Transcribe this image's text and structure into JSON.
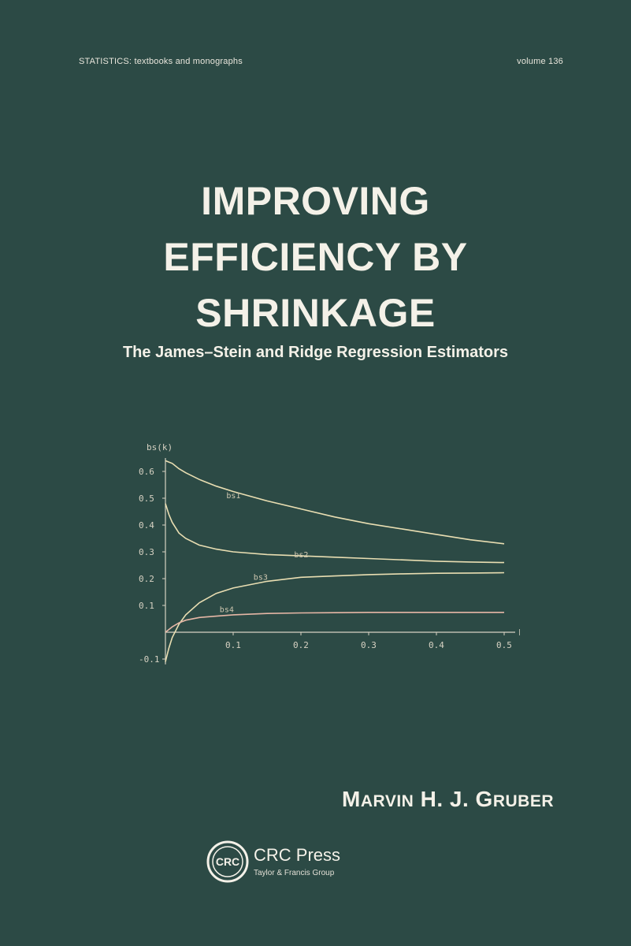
{
  "header": {
    "series": "STATISTICS:  textbooks and monographs",
    "volume": "volume 136"
  },
  "title": {
    "lines": [
      "IMPROVING",
      "EFFICIENCY BY",
      "SHRINKAGE"
    ]
  },
  "subtitle": "The James–Stein and Ridge Regression Estimators",
  "plot": {
    "y_axis_label": "bs(k)",
    "x_axis_label": "k",
    "curve_labels": [
      "bs1",
      "bs2",
      "bs3",
      "bs4"
    ],
    "colors": {
      "curve": "#e9deb2",
      "curve_pink": "#e6b7a6",
      "axis": "#d7d2c3"
    }
  },
  "chart_data": {
    "type": "line",
    "title": "",
    "xlabel": "k",
    "ylabel": "bs(k)",
    "xlim": [
      0,
      0.5
    ],
    "ylim": [
      -0.1,
      0.65
    ],
    "x_ticks": [
      "0.1",
      "0.2",
      "0.3",
      "0.4",
      "0.5"
    ],
    "y_ticks": [
      "0.6",
      "0.5",
      "0.4",
      "0.3",
      "0.2",
      "0.1",
      "-0.1"
    ],
    "x": [
      0,
      0.005,
      0.01,
      0.02,
      0.03,
      0.05,
      0.075,
      0.1,
      0.15,
      0.2,
      0.25,
      0.3,
      0.35,
      0.4,
      0.45,
      0.5
    ],
    "series": [
      {
        "name": "bs1",
        "values": [
          0.64,
          0.635,
          0.63,
          0.61,
          0.595,
          0.57,
          0.545,
          0.525,
          0.49,
          0.46,
          0.43,
          0.405,
          0.385,
          0.365,
          0.345,
          0.33
        ]
      },
      {
        "name": "bs2",
        "values": [
          0.48,
          0.44,
          0.41,
          0.37,
          0.35,
          0.325,
          0.31,
          0.3,
          0.29,
          0.285,
          0.28,
          0.275,
          0.27,
          0.265,
          0.262,
          0.26
        ]
      },
      {
        "name": "bs3",
        "values": [
          -0.11,
          -0.06,
          -0.02,
          0.03,
          0.065,
          0.11,
          0.145,
          0.165,
          0.19,
          0.205,
          0.21,
          0.215,
          0.218,
          0.22,
          0.221,
          0.222
        ]
      },
      {
        "name": "bs4",
        "values": [
          0.0,
          0.01,
          0.02,
          0.035,
          0.045,
          0.055,
          0.06,
          0.065,
          0.07,
          0.072,
          0.073,
          0.074,
          0.074,
          0.074,
          0.074,
          0.074
        ]
      }
    ]
  },
  "author": {
    "first_initial": "M",
    "first_rest": "ARVIN",
    "middle": " H. J. ",
    "last_initial": "G",
    "last_rest": "RUBER"
  },
  "publisher": {
    "logo_text": "CRC",
    "name": "CRC Press",
    "tagline": "Taylor & Francis Group"
  }
}
